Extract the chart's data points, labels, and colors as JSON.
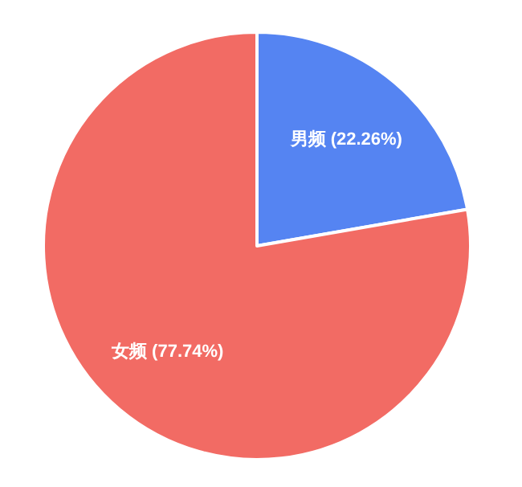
{
  "chart_data": {
    "type": "pie",
    "categories": [
      "男频",
      "女频"
    ],
    "values": [
      22.26,
      77.74
    ],
    "colors": [
      "#5584f2",
      "#f26b64"
    ],
    "value_labels": [
      "(22.26%)",
      "(77.74%)"
    ]
  }
}
